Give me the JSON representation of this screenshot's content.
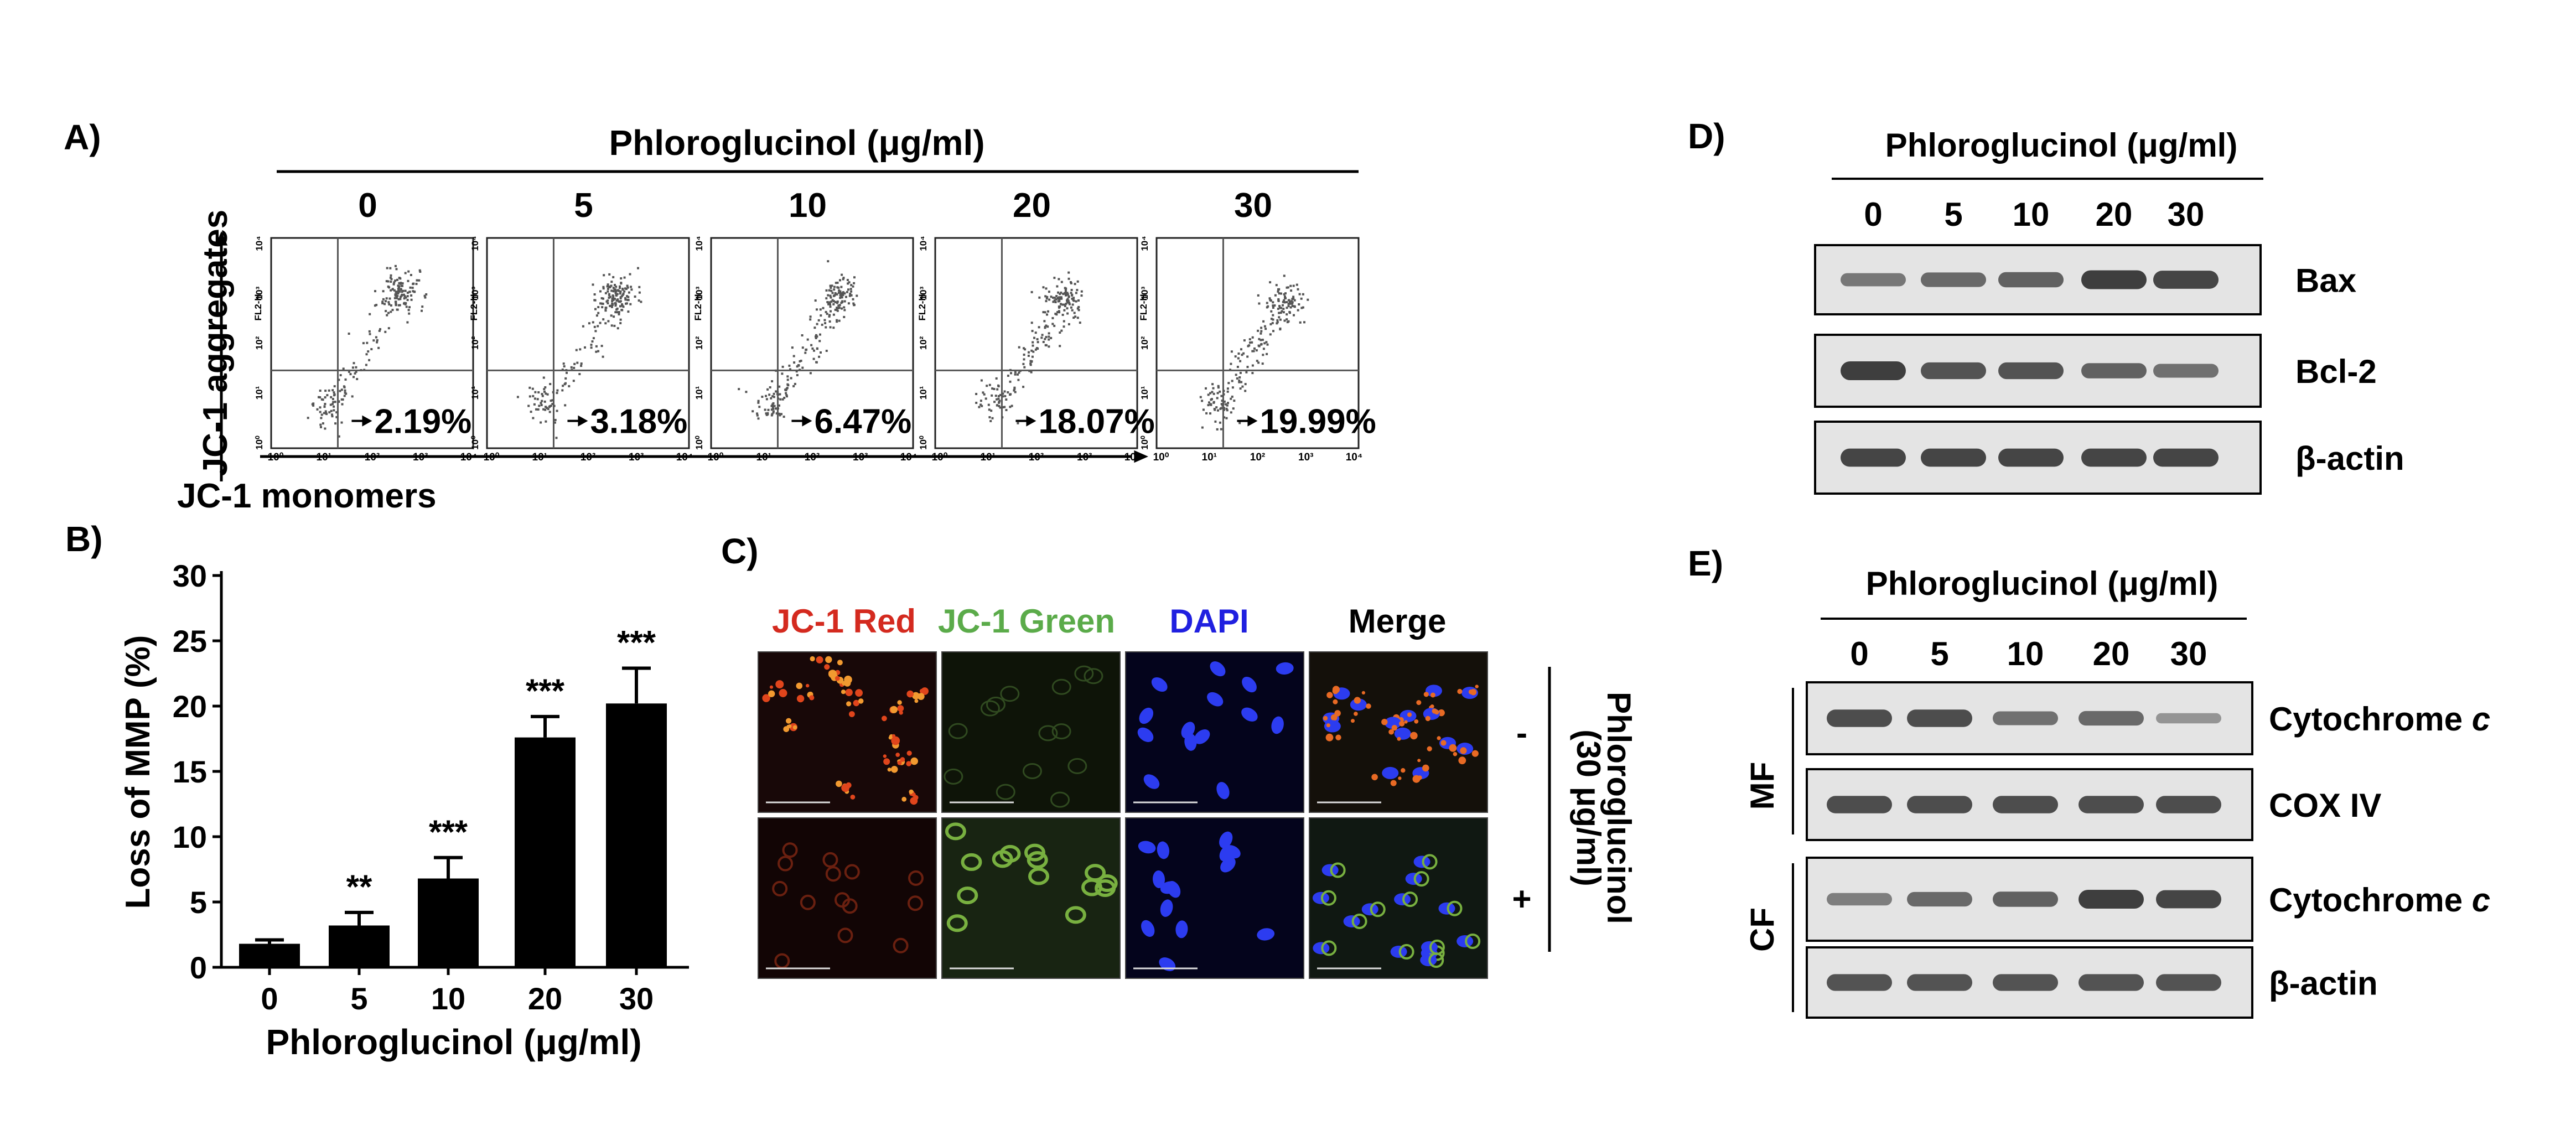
{
  "chart_data": [
    {
      "panel": "A)",
      "type": "scatter",
      "title": "Phloroglucinol (μg/ml)",
      "ylabel": "JC-1 aggregates",
      "xlabel": "JC-1 monomers",
      "axis_label_inner": "FL2-H",
      "x_ticks": [
        "10⁰",
        "10¹",
        "10²",
        "10³",
        "10⁴"
      ],
      "y_ticks": [
        "10⁰",
        "10¹",
        "10²",
        "10³",
        "10⁴"
      ],
      "log_scale": true,
      "plots": [
        {
          "dose": "0",
          "percent": "2.19%",
          "shift": 0.0
        },
        {
          "dose": "5",
          "percent": "3.18%",
          "shift": 0.08
        },
        {
          "dose": "10",
          "percent": "6.47%",
          "shift": 0.18
        },
        {
          "dose": "20",
          "percent": "18.07%",
          "shift": 0.38
        },
        {
          "dose": "30",
          "percent": "19.99%",
          "shift": 0.48
        }
      ]
    },
    {
      "panel": "B)",
      "type": "bar",
      "categories": [
        "0",
        "5",
        "10",
        "20",
        "30"
      ],
      "values": [
        1.8,
        3.2,
        6.8,
        17.6,
        20.2
      ],
      "errors": [
        0.3,
        1.0,
        1.6,
        1.6,
        2.7
      ],
      "significance": [
        "",
        "**",
        "***",
        "***",
        "***"
      ],
      "xlabel": "Phloroglucinol (μg/ml)",
      "ylabel": "Loss of MMP (%)",
      "ylim": [
        0,
        30
      ],
      "yticks": [
        0,
        5,
        10,
        15,
        20,
        25,
        30
      ],
      "grid": false
    },
    {
      "panel": "C)",
      "type": "image-grid",
      "columns": [
        "JC-1 Red",
        "JC-1 Green",
        "DAPI",
        "Merge"
      ],
      "column_colors": [
        "#d42a1f",
        "#5bab4a",
        "#2020e0",
        "#000000"
      ],
      "rows": [
        "-",
        "+"
      ],
      "side_label": "Phloroglucinol",
      "side_sublabel": "(30 μg/ml)"
    },
    {
      "panel": "D)",
      "type": "western-blot",
      "title": "Phloroglucinol (μg/ml)",
      "lanes": [
        "0",
        "5",
        "10",
        "20",
        "30"
      ],
      "bands": [
        {
          "label": "Bax",
          "intensity": [
            0.45,
            0.55,
            0.6,
            0.85,
            0.8
          ]
        },
        {
          "label": "Bcl-2",
          "intensity": [
            0.85,
            0.7,
            0.7,
            0.6,
            0.5
          ]
        },
        {
          "label": "β-actin",
          "intensity": [
            0.8,
            0.8,
            0.8,
            0.8,
            0.8
          ]
        }
      ]
    },
    {
      "panel": "E)",
      "type": "western-blot",
      "title": "Phloroglucinol (μg/ml)",
      "lanes": [
        "0",
        "5",
        "10",
        "20",
        "30"
      ],
      "groups": [
        {
          "label": "MF",
          "bands": [
            {
              "label": "Cytochrome",
              "label_italic": "c",
              "intensity": [
                0.75,
                0.75,
                0.5,
                0.55,
                0.25
              ]
            },
            {
              "label": "COX IV",
              "label_italic": "",
              "intensity": [
                0.75,
                0.75,
                0.75,
                0.75,
                0.75
              ]
            }
          ]
        },
        {
          "label": "CF",
          "bands": [
            {
              "label": "Cytochrome",
              "label_italic": "c",
              "intensity": [
                0.4,
                0.55,
                0.6,
                0.85,
                0.8
              ]
            },
            {
              "label": "β-actin",
              "label_italic": "",
              "intensity": [
                0.7,
                0.7,
                0.7,
                0.7,
                0.7
              ]
            }
          ]
        }
      ]
    }
  ]
}
